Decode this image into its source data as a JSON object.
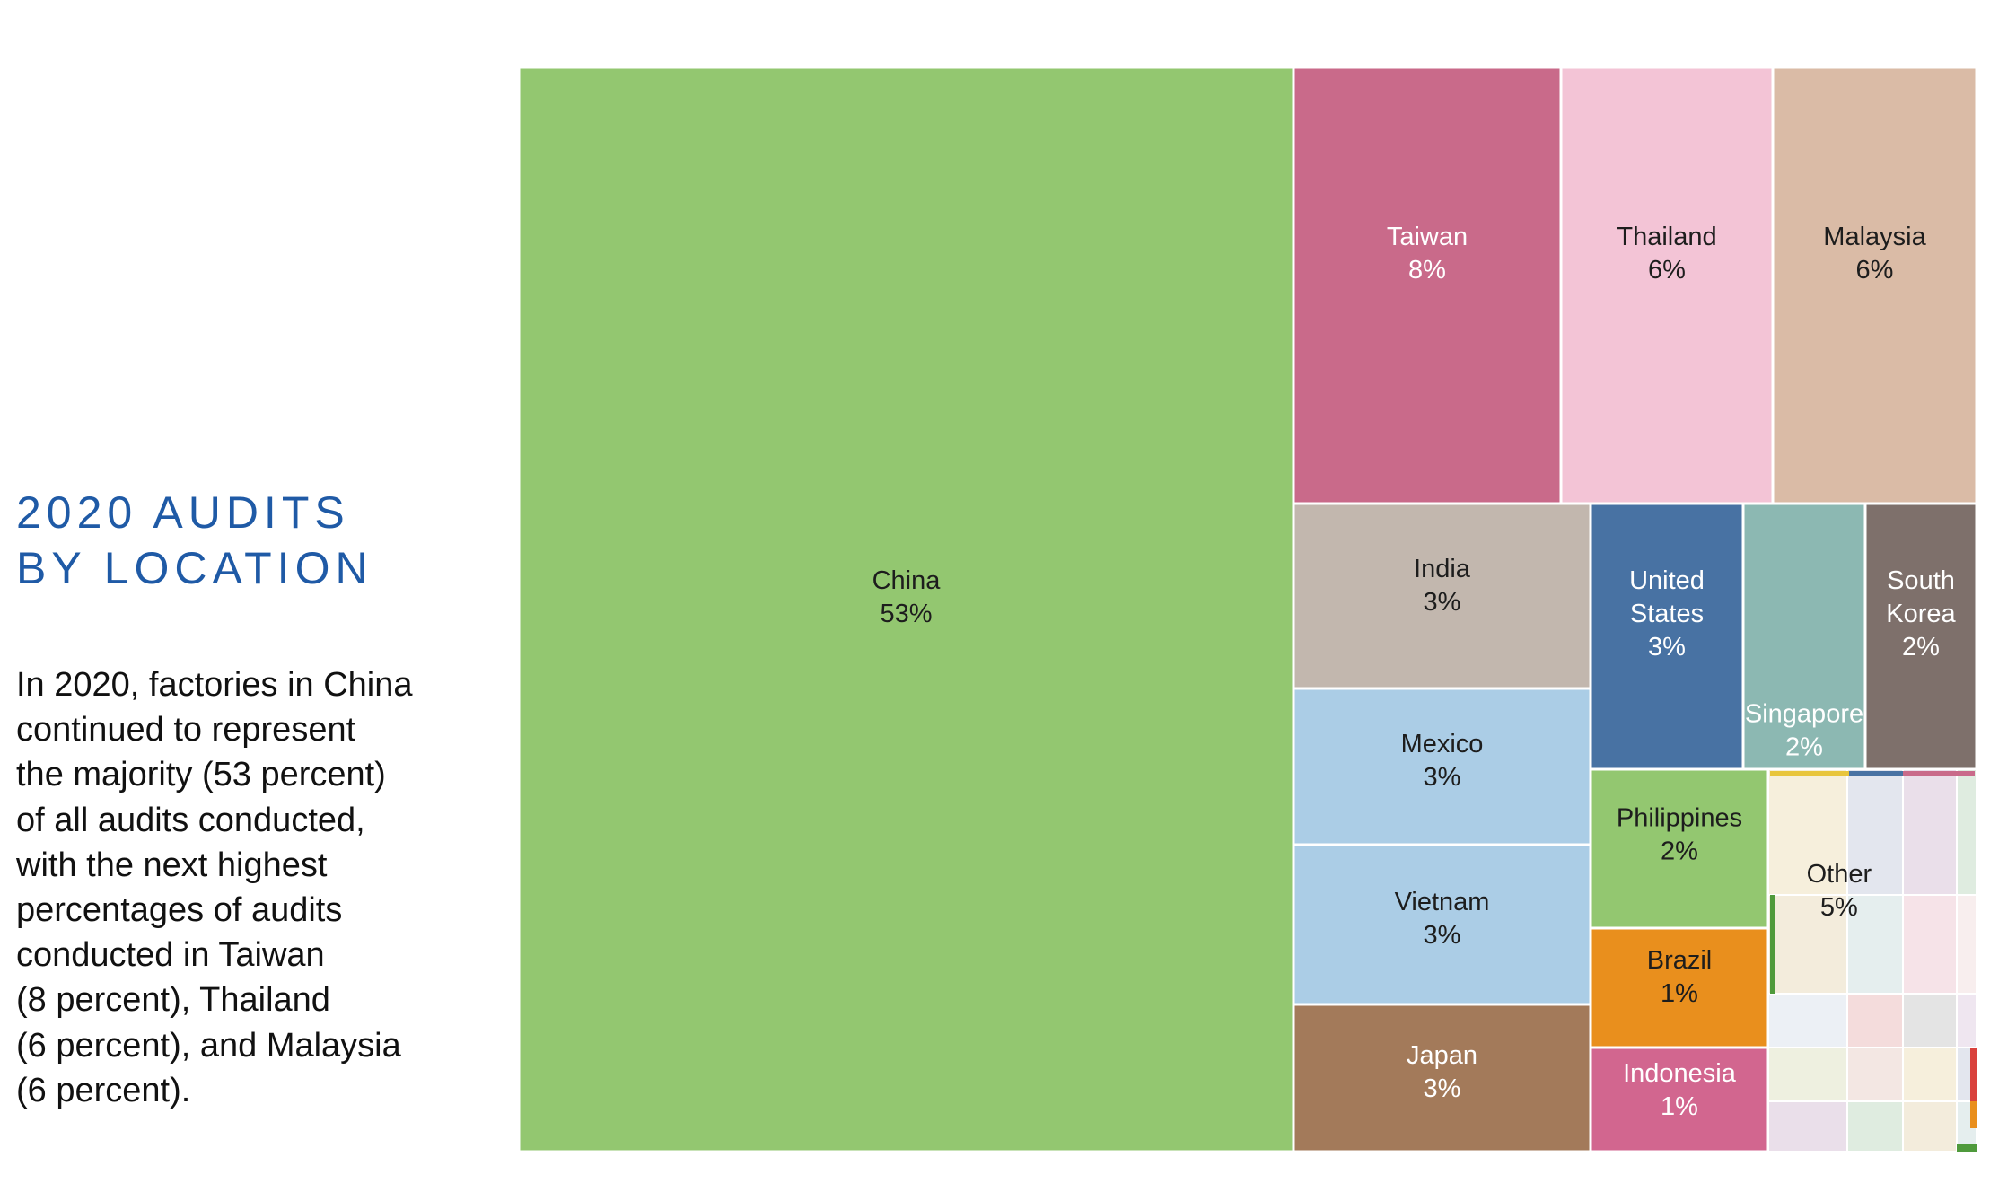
{
  "heading": {
    "line1": "2020 AUDITS",
    "line2": "BY LOCATION"
  },
  "body_lines": [
    "In 2020, factories in China",
    "continued to represent",
    "the majority (53 percent)",
    "of all audits conducted,",
    "with the next highest",
    "percentages of audits",
    "conducted in Taiwan",
    "(8 percent), Thailand",
    "(6 percent), and Malaysia",
    "(6 percent)."
  ],
  "chart_data": {
    "type": "treemap",
    "unit": "%",
    "items": [
      {
        "name": "China",
        "label_lines": [
          "China"
        ],
        "value": 53,
        "color": "#93c770",
        "text_color": "#1d1d1d"
      },
      {
        "name": "Taiwan",
        "label_lines": [
          "Taiwan"
        ],
        "value": 8,
        "color": "#c96a8a",
        "text_color": "#ffffff"
      },
      {
        "name": "Thailand",
        "label_lines": [
          "Thailand"
        ],
        "value": 6,
        "color": "#f3c4d6",
        "text_color": "#1d1d1d"
      },
      {
        "name": "Malaysia",
        "label_lines": [
          "Malaysia"
        ],
        "value": 6,
        "color": "#dabba6",
        "text_color": "#1d1d1d"
      },
      {
        "name": "India",
        "label_lines": [
          "India"
        ],
        "value": 3,
        "color": "#c2b7ae",
        "text_color": "#1d1d1d"
      },
      {
        "name": "United States",
        "label_lines": [
          "United",
          "States"
        ],
        "value": 3,
        "color": "#4872a3",
        "text_color": "#ffffff"
      },
      {
        "name": "Singapore",
        "label_lines": [
          "Singapore"
        ],
        "value": 2,
        "color": "#8cb8b2",
        "text_color": "#ffffff"
      },
      {
        "name": "South Korea",
        "label_lines": [
          "South",
          "Korea"
        ],
        "value": 2,
        "color": "#7e706b",
        "text_color": "#ffffff"
      },
      {
        "name": "Mexico",
        "label_lines": [
          "Mexico"
        ],
        "value": 3,
        "color": "#abcde6",
        "text_color": "#1d1d1d"
      },
      {
        "name": "Vietnam",
        "label_lines": [
          "Vietnam"
        ],
        "value": 3,
        "color": "#abcde6",
        "text_color": "#1d1d1d"
      },
      {
        "name": "Japan",
        "label_lines": [
          "Japan"
        ],
        "value": 3,
        "color": "#a37a5a",
        "text_color": "#ffffff"
      },
      {
        "name": "Philippines",
        "label_lines": [
          "Philippines"
        ],
        "value": 2,
        "color": "#93c770",
        "text_color": "#1d1d1d"
      },
      {
        "name": "Brazil",
        "label_lines": [
          "Brazil"
        ],
        "value": 1,
        "color": "#e98f1d",
        "text_color": "#1d1d1d"
      },
      {
        "name": "Indonesia",
        "label_lines": [
          "Indonesia"
        ],
        "value": 1,
        "color": "#d2668f",
        "text_color": "#ffffff"
      },
      {
        "name": "Other",
        "label_lines": [
          "Other"
        ],
        "value": 5,
        "color": "#f1eee8",
        "text_color": "#1d1d1d"
      }
    ]
  }
}
